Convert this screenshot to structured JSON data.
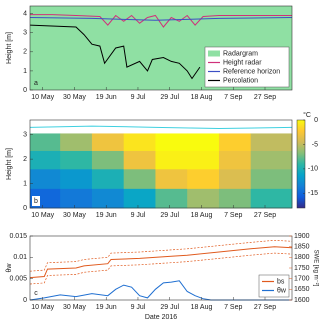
{
  "chart_data": [
    {
      "type": "line",
      "panel_label": "a",
      "ylabel": "Height [m]",
      "xlim": [
        1,
        166
      ],
      "xticks": [
        {
          "value": 9,
          "label": "10 May"
        },
        {
          "value": 29,
          "label": "30 May"
        },
        {
          "value": 49,
          "label": "19 Jun"
        },
        {
          "value": 69,
          "label": "9 Jul"
        },
        {
          "value": 89,
          "label": "29 Jul"
        },
        {
          "value": 109,
          "label": "18 Aug"
        },
        {
          "value": 129,
          "label": "7 Sep"
        },
        {
          "value": 149,
          "label": "27 Sep"
        }
      ],
      "ylim": [
        0,
        4.4
      ],
      "yticks": [
        0,
        1,
        2,
        3,
        4
      ],
      "legend_position": "lower right",
      "raster": {
        "name": "Radargram",
        "color": "#8fe0a3"
      },
      "series": [
        {
          "name": "Height radar",
          "color": "#d0307a",
          "x": [
            1,
            15,
            30,
            45,
            50,
            55,
            60,
            65,
            70,
            75,
            80,
            85,
            90,
            95,
            100,
            105,
            110,
            120,
            130,
            140,
            150,
            166
          ],
          "values": [
            3.95,
            3.95,
            3.9,
            3.85,
            3.4,
            3.9,
            3.6,
            3.9,
            3.5,
            3.8,
            3.9,
            3.3,
            3.8,
            3.6,
            3.9,
            3.4,
            3.85,
            3.9,
            3.9,
            3.9,
            3.9,
            3.9
          ]
        },
        {
          "name": "Reference horizon",
          "color": "#3b4fc4",
          "x": [
            1,
            40,
            60,
            80,
            100,
            120,
            166
          ],
          "values": [
            3.8,
            3.75,
            3.7,
            3.65,
            3.7,
            3.75,
            3.8
          ]
        },
        {
          "name": "Percolation",
          "color": "#000000",
          "x": [
            1,
            30,
            35,
            40,
            45,
            48,
            55,
            60,
            62,
            70,
            75,
            78,
            85,
            90,
            95,
            100,
            103,
            108
          ],
          "values": [
            3.4,
            3.3,
            2.9,
            2.4,
            2.3,
            1.4,
            2.2,
            2.3,
            1.2,
            1.5,
            1.0,
            1.6,
            1.7,
            1.5,
            1.4,
            1.0,
            0.6,
            1.2
          ]
        }
      ]
    },
    {
      "type": "heatmap",
      "panel_label": "b",
      "ylabel": "Height [m]",
      "xlim": [
        1,
        166
      ],
      "xticks": [
        {
          "value": 9,
          "label": "10 May"
        },
        {
          "value": 29,
          "label": "30 May"
        },
        {
          "value": 49,
          "label": "19 Jun"
        },
        {
          "value": 69,
          "label": "9 Jul"
        },
        {
          "value": 89,
          "label": "29 Jul"
        },
        {
          "value": 109,
          "label": "18 Aug"
        },
        {
          "value": 129,
          "label": "7 Sep"
        },
        {
          "value": 149,
          "label": "27 Sep"
        }
      ],
      "ylim": [
        0,
        3.6
      ],
      "yticks": [
        0,
        1,
        2,
        3
      ],
      "x": [
        10,
        30,
        50,
        70,
        90,
        110,
        130,
        150
      ],
      "heights": [
        0.4,
        1.2,
        2.0,
        2.7
      ],
      "z": [
        [
          -15,
          -14,
          -13,
          -11,
          -8,
          -6,
          -7,
          -9
        ],
        [
          -13,
          -12,
          -10,
          -7,
          -3,
          -2,
          -4,
          -7
        ],
        [
          -10,
          -9,
          -7,
          -3,
          -0.5,
          -0.5,
          -3,
          -6
        ],
        [
          -8,
          -6,
          -3,
          -1,
          0,
          0,
          -2,
          -5
        ]
      ],
      "clim": [
        -18,
        0
      ],
      "cticks": [
        0,
        -5,
        -10,
        -15
      ],
      "clabel": "°C",
      "lines": [
        {
          "color": "#3fd0e0",
          "x": [
            1,
            40,
            80,
            120,
            166
          ],
          "values": [
            3.3,
            3.35,
            3.3,
            3.25,
            3.3
          ]
        }
      ]
    },
    {
      "type": "line",
      "panel_label": "c",
      "ylabel": "θw",
      "y2label": "SWE [kg m⁻²]",
      "xlabel": "Date 2016",
      "xlim": [
        1,
        166
      ],
      "xticks": [
        {
          "value": 9,
          "label": "10 May"
        },
        {
          "value": 29,
          "label": "30 May"
        },
        {
          "value": 49,
          "label": "19 Jun"
        },
        {
          "value": 69,
          "label": "9 Jul"
        },
        {
          "value": 89,
          "label": "29 Jul"
        },
        {
          "value": 109,
          "label": "18 Aug"
        },
        {
          "value": 129,
          "label": "7 Sep"
        },
        {
          "value": 149,
          "label": "27 Sep"
        }
      ],
      "ylim": [
        0,
        0.015
      ],
      "yticks": [
        0,
        0.005,
        0.01,
        0.015
      ],
      "ycolor": "#1f6fd1",
      "y2lim": [
        1600,
        1900
      ],
      "y2ticks": [
        1600,
        1650,
        1700,
        1750,
        1800,
        1850,
        1900
      ],
      "y2color": "#e05a1e",
      "legend_position": "lower right",
      "series": [
        {
          "name": "bs",
          "color": "#e05a1e",
          "axis": "y2",
          "x": [
            1,
            10,
            12,
            30,
            35,
            50,
            52,
            70,
            90,
            100,
            120,
            140,
            155,
            166
          ],
          "values": [
            1705,
            1710,
            1745,
            1750,
            1760,
            1770,
            1790,
            1795,
            1805,
            1810,
            1825,
            1840,
            1850,
            1845
          ],
          "upper": [
            1735,
            1740,
            1775,
            1780,
            1790,
            1800,
            1820,
            1825,
            1835,
            1840,
            1855,
            1870,
            1880,
            1875
          ],
          "lower": [
            1675,
            1680,
            1715,
            1720,
            1730,
            1740,
            1760,
            1765,
            1775,
            1780,
            1795,
            1810,
            1820,
            1815
          ]
        },
        {
          "name": "θw",
          "color": "#1f6fd1",
          "x": [
            1,
            10,
            20,
            30,
            40,
            50,
            55,
            60,
            65,
            70,
            75,
            80,
            85,
            90,
            95,
            100,
            105,
            110,
            115,
            120,
            166
          ],
          "values": [
            0,
            0.0005,
            0.0012,
            0.0008,
            0.0015,
            0.001,
            0.0025,
            0.0035,
            0.003,
            0.001,
            0.0005,
            0.0025,
            0.004,
            0.0042,
            0.0045,
            0.002,
            0.001,
            0.0003,
            0,
            0,
            0
          ]
        }
      ]
    }
  ]
}
